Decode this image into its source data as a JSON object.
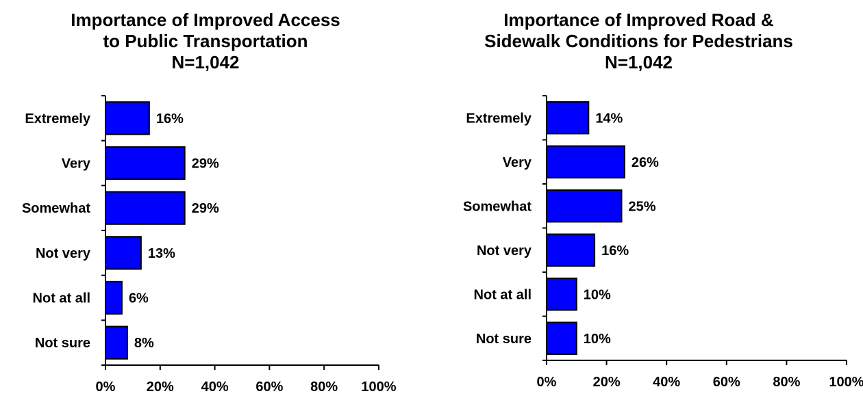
{
  "chart_data": [
    {
      "type": "bar",
      "orientation": "horizontal",
      "title_lines": [
        "Importance of Improved Access",
        "to Public Transportation",
        "N=1,042"
      ],
      "categories": [
        "Extremely",
        "Very",
        "Somewhat",
        "Not very",
        "Not at all",
        "Not sure"
      ],
      "values": [
        16,
        29,
        29,
        13,
        6,
        8
      ],
      "value_labels": [
        "16%",
        "29%",
        "29%",
        "13%",
        "6%",
        "8%"
      ],
      "x_ticks": [
        "0%",
        "20%",
        "40%",
        "60%",
        "80%",
        "100%"
      ],
      "xlim": [
        0,
        100
      ],
      "bar_color": "#0000ff",
      "grid": false,
      "legend": "none"
    },
    {
      "type": "bar",
      "orientation": "horizontal",
      "title_lines": [
        "Importance of Improved Road &",
        "Sidewalk Conditions for Pedestrians",
        "N=1,042"
      ],
      "categories": [
        "Extremely",
        "Very",
        "Somewhat",
        "Not very",
        "Not at all",
        "Not sure"
      ],
      "values": [
        14,
        26,
        25,
        16,
        10,
        10
      ],
      "value_labels": [
        "14%",
        "26%",
        "25%",
        "16%",
        "10%",
        "10%"
      ],
      "x_ticks": [
        "0%",
        "20%",
        "40%",
        "60%",
        "80%",
        "100%"
      ],
      "xlim": [
        0,
        100
      ],
      "bar_color": "#0000ff",
      "grid": false,
      "legend": "none"
    }
  ]
}
